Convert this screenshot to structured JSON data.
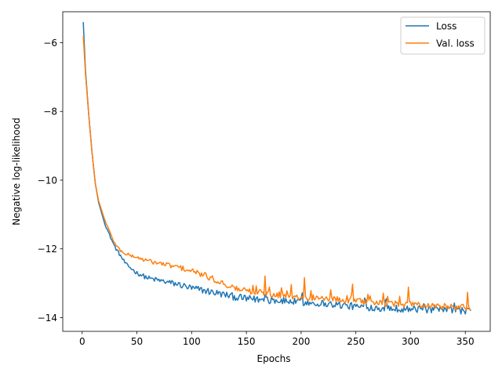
{
  "chart_data": {
    "type": "line",
    "title": "",
    "xlabel": "Epochs",
    "ylabel": "Negative log-likelihood",
    "xlim": [
      -17.75,
      372.75
    ],
    "ylim": [
      -14.4,
      -5.1
    ],
    "xticks": [
      0,
      50,
      100,
      150,
      200,
      250,
      300,
      350
    ],
    "xtick_labels": [
      "0",
      "50",
      "100",
      "150",
      "200",
      "250",
      "300",
      "350"
    ],
    "yticks": [
      -14,
      -12,
      -10,
      -8,
      -6
    ],
    "ytick_labels": [
      "−14",
      "−12",
      "−10",
      "−8",
      "−6"
    ],
    "grid": false,
    "legend_position": "top-right",
    "epochs": 355,
    "series": [
      {
        "name": "Loss",
        "color": "#1f77b4",
        "keypoints": [
          [
            1,
            -5.4
          ],
          [
            3,
            -6.8
          ],
          [
            6,
            -8.1
          ],
          [
            9,
            -9.2
          ],
          [
            12,
            -10.1
          ],
          [
            15,
            -10.65
          ],
          [
            20,
            -11.2
          ],
          [
            25,
            -11.6
          ],
          [
            30,
            -11.95
          ],
          [
            35,
            -12.2
          ],
          [
            40,
            -12.45
          ],
          [
            50,
            -12.7
          ],
          [
            60,
            -12.85
          ],
          [
            75,
            -12.95
          ],
          [
            90,
            -13.05
          ],
          [
            100,
            -13.15
          ],
          [
            110,
            -13.2
          ],
          [
            125,
            -13.3
          ],
          [
            140,
            -13.4
          ],
          [
            150,
            -13.45
          ],
          [
            175,
            -13.5
          ],
          [
            200,
            -13.55
          ],
          [
            225,
            -13.6
          ],
          [
            250,
            -13.68
          ],
          [
            275,
            -13.72
          ],
          [
            300,
            -13.75
          ],
          [
            325,
            -13.78
          ],
          [
            355,
            -13.8
          ]
        ]
      },
      {
        "name": "Val. loss",
        "color": "#ff7f0e",
        "keypoints": [
          [
            1,
            -5.8
          ],
          [
            3,
            -6.9
          ],
          [
            6,
            -8.1
          ],
          [
            9,
            -9.2
          ],
          [
            12,
            -10.1
          ],
          [
            15,
            -10.6
          ],
          [
            20,
            -11.1
          ],
          [
            25,
            -11.5
          ],
          [
            30,
            -11.85
          ],
          [
            35,
            -12.05
          ],
          [
            40,
            -12.15
          ],
          [
            50,
            -12.25
          ],
          [
            60,
            -12.35
          ],
          [
            75,
            -12.45
          ],
          [
            90,
            -12.55
          ],
          [
            100,
            -12.65
          ],
          [
            110,
            -12.75
          ],
          [
            125,
            -12.95
          ],
          [
            140,
            -13.15
          ],
          [
            150,
            -13.22
          ],
          [
            175,
            -13.32
          ],
          [
            200,
            -13.4
          ],
          [
            225,
            -13.45
          ],
          [
            250,
            -13.52
          ],
          [
            275,
            -13.58
          ],
          [
            300,
            -13.62
          ],
          [
            325,
            -13.66
          ],
          [
            355,
            -13.72
          ]
        ]
      }
    ]
  }
}
